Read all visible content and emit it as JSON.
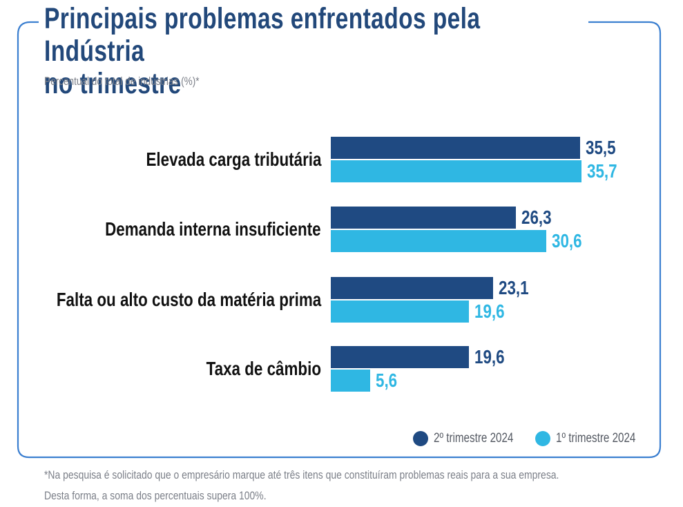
{
  "chart_data": {
    "type": "bar",
    "orientation": "horizontal",
    "title": "Principais problemas enfrentados pela Indústria no trimestre",
    "subtitle": "Percentual do total de indústrias (%)*",
    "categories": [
      "Elevada carga tributária",
      "Demanda interna insuficiente",
      "Falta ou alto custo da matéria prima",
      "Taxa de câmbio"
    ],
    "series": [
      {
        "name": "2º trimestre 2024",
        "color": "#1f4a82",
        "values": [
          35.5,
          26.3,
          23.1,
          19.6
        ],
        "labels": [
          "35,5",
          "26,3",
          "23,1",
          "19,6"
        ]
      },
      {
        "name": "1º trimestre 2024",
        "color": "#2fb7e3",
        "values": [
          35.7,
          30.6,
          19.6,
          5.6
        ],
        "labels": [
          "35,7",
          "30,6",
          "19,6",
          "5,6"
        ]
      }
    ],
    "xlabel": "",
    "ylabel": "",
    "xlim": [
      0,
      40
    ],
    "grid": false,
    "legend_position": "bottom-right",
    "footnote": [
      "*Na pesquisa é solicitado que o empresário marque até três itens que constituíram problemas reais para a sua empresa.",
      "Desta forma, a soma dos percentuais supera 100%."
    ]
  },
  "title_lines": [
    "Principais problemas enfrentados pela Indústria",
    "no trimestre"
  ],
  "frame_color": "#3b7fd0"
}
